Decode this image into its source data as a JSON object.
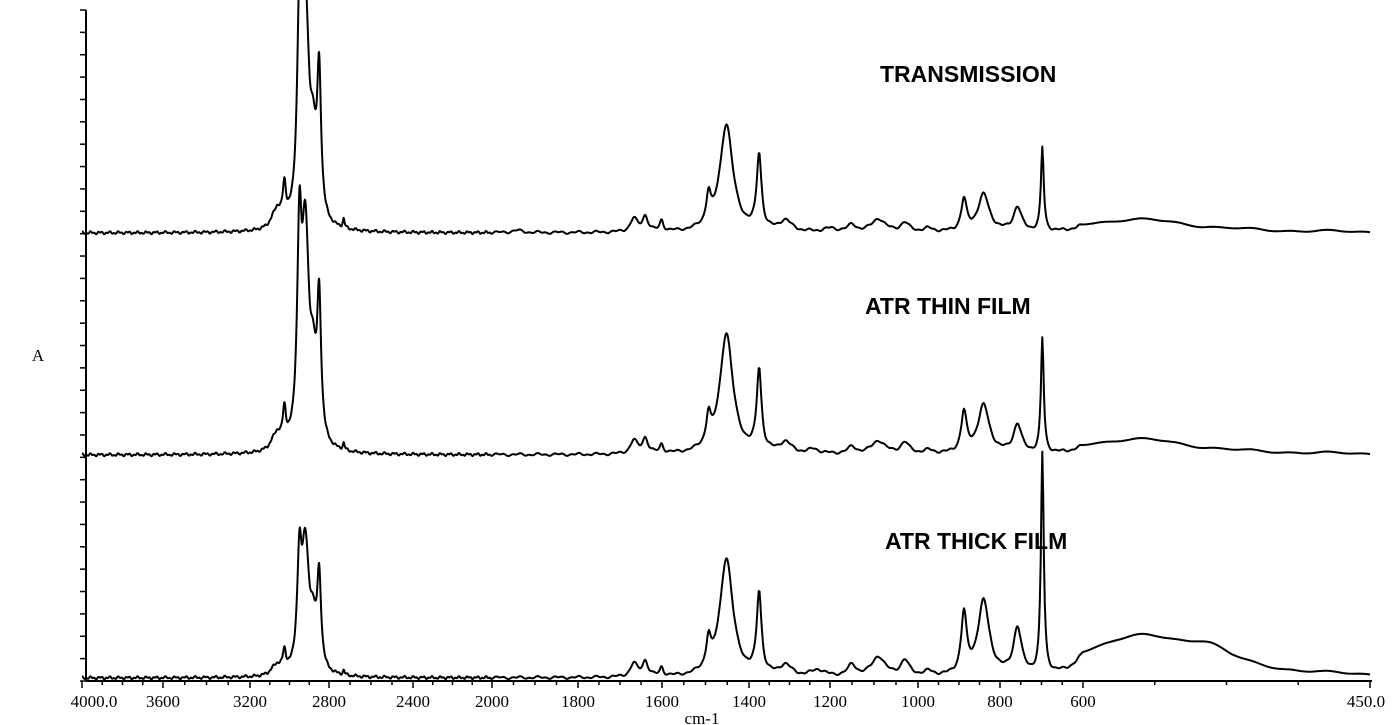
{
  "chart_data": {
    "type": "line",
    "title": "",
    "xlabel": "cm-1",
    "ylabel": "A",
    "x_reversed": true,
    "xlim": [
      4000.0,
      450.0
    ],
    "x_ticks": [
      "4000.0",
      "3600",
      "3200",
      "2800",
      "2400",
      "2000",
      "1800",
      "1600",
      "1400",
      "1200",
      "1000",
      "800",
      "600",
      "450.0"
    ],
    "x_tick_values": [
      4000,
      3600,
      3200,
      2800,
      2400,
      2000,
      1800,
      1600,
      1400,
      1200,
      1000,
      800,
      600,
      450
    ],
    "y_axis_numbered": false,
    "grid": false,
    "series": [
      {
        "name": "TRANSMISSION",
        "baseline": 0.02,
        "peaks": [
          {
            "x": 3080,
            "y": 0.03,
            "w": 25
          },
          {
            "x": 3060,
            "y": 0.06,
            "w": 20
          },
          {
            "x": 3026,
            "y": 0.16,
            "w": 10
          },
          {
            "x": 2950,
            "y": 0.84,
            "w": 13
          },
          {
            "x": 2920,
            "y": 0.97,
            "w": 22
          },
          {
            "x": 2880,
            "y": 0.28,
            "w": 18
          },
          {
            "x": 2850,
            "y": 0.64,
            "w": 12
          },
          {
            "x": 2730,
            "y": 0.04,
            "w": 5
          },
          {
            "x": 1942,
            "y": 0.01,
            "w": 15
          },
          {
            "x": 1667,
            "y": 0.06,
            "w": 10
          },
          {
            "x": 1640,
            "y": 0.07,
            "w": 8
          },
          {
            "x": 1601,
            "y": 0.05,
            "w": 5
          },
          {
            "x": 1493,
            "y": 0.13,
            "w": 6
          },
          {
            "x": 1452,
            "y": 0.49,
            "w": 18
          },
          {
            "x": 1375,
            "y": 0.34,
            "w": 7
          },
          {
            "x": 1310,
            "y": 0.05,
            "w": 18
          },
          {
            "x": 1200,
            "y": 0.015,
            "w": 20
          },
          {
            "x": 1150,
            "y": 0.03,
            "w": 12
          },
          {
            "x": 1090,
            "y": 0.06,
            "w": 18
          },
          {
            "x": 1030,
            "y": 0.04,
            "w": 12
          },
          {
            "x": 975,
            "y": 0.015,
            "w": 15
          },
          {
            "x": 888,
            "y": 0.14,
            "w": 8
          },
          {
            "x": 840,
            "y": 0.17,
            "w": 17
          },
          {
            "x": 758,
            "y": 0.11,
            "w": 12
          },
          {
            "x": 698,
            "y": 0.38,
            "w": 4
          },
          {
            "x": 572,
            "y": 0.06,
            "w": 35
          }
        ]
      },
      {
        "name": "ATR  THIN FILM",
        "baseline": 0.02,
        "peaks": [
          {
            "x": 3080,
            "y": 0.03,
            "w": 25
          },
          {
            "x": 3060,
            "y": 0.05,
            "w": 20
          },
          {
            "x": 3026,
            "y": 0.15,
            "w": 10
          },
          {
            "x": 2950,
            "y": 0.84,
            "w": 13
          },
          {
            "x": 2920,
            "y": 0.96,
            "w": 22
          },
          {
            "x": 2880,
            "y": 0.28,
            "w": 18
          },
          {
            "x": 2850,
            "y": 0.62,
            "w": 12
          },
          {
            "x": 2730,
            "y": 0.03,
            "w": 5
          },
          {
            "x": 1667,
            "y": 0.06,
            "w": 10
          },
          {
            "x": 1640,
            "y": 0.07,
            "w": 8
          },
          {
            "x": 1601,
            "y": 0.04,
            "w": 5
          },
          {
            "x": 1493,
            "y": 0.13,
            "w": 6
          },
          {
            "x": 1452,
            "y": 0.55,
            "w": 18
          },
          {
            "x": 1375,
            "y": 0.37,
            "w": 7
          },
          {
            "x": 1310,
            "y": 0.05,
            "w": 18
          },
          {
            "x": 1240,
            "y": 0.02,
            "w": 15
          },
          {
            "x": 1150,
            "y": 0.03,
            "w": 12
          },
          {
            "x": 1090,
            "y": 0.06,
            "w": 18
          },
          {
            "x": 1030,
            "y": 0.05,
            "w": 12
          },
          {
            "x": 975,
            "y": 0.015,
            "w": 15
          },
          {
            "x": 888,
            "y": 0.18,
            "w": 8
          },
          {
            "x": 840,
            "y": 0.22,
            "w": 17
          },
          {
            "x": 758,
            "y": 0.13,
            "w": 12
          },
          {
            "x": 698,
            "y": 0.52,
            "w": 4
          },
          {
            "x": 572,
            "y": 0.07,
            "w": 35
          }
        ]
      },
      {
        "name": "ATR THICK FILM",
        "baseline": 0.02,
        "peaks": [
          {
            "x": 3080,
            "y": 0.02,
            "w": 25
          },
          {
            "x": 3060,
            "y": 0.03,
            "w": 20
          },
          {
            "x": 3026,
            "y": 0.09,
            "w": 10
          },
          {
            "x": 2950,
            "y": 0.45,
            "w": 13
          },
          {
            "x": 2920,
            "y": 0.57,
            "w": 22
          },
          {
            "x": 2880,
            "y": 0.18,
            "w": 18
          },
          {
            "x": 2850,
            "y": 0.41,
            "w": 12
          },
          {
            "x": 2730,
            "y": 0.02,
            "w": 5
          },
          {
            "x": 1667,
            "y": 0.06,
            "w": 10
          },
          {
            "x": 1640,
            "y": 0.07,
            "w": 8
          },
          {
            "x": 1601,
            "y": 0.04,
            "w": 5
          },
          {
            "x": 1493,
            "y": 0.13,
            "w": 6
          },
          {
            "x": 1452,
            "y": 0.54,
            "w": 18
          },
          {
            "x": 1375,
            "y": 0.37,
            "w": 7
          },
          {
            "x": 1310,
            "y": 0.05,
            "w": 18
          },
          {
            "x": 1230,
            "y": 0.03,
            "w": 20
          },
          {
            "x": 1150,
            "y": 0.05,
            "w": 12
          },
          {
            "x": 1090,
            "y": 0.09,
            "w": 18
          },
          {
            "x": 1030,
            "y": 0.07,
            "w": 12
          },
          {
            "x": 975,
            "y": 0.02,
            "w": 15
          },
          {
            "x": 888,
            "y": 0.27,
            "w": 8
          },
          {
            "x": 840,
            "y": 0.34,
            "w": 17
          },
          {
            "x": 758,
            "y": 0.21,
            "w": 12
          },
          {
            "x": 698,
            "y": 1.0,
            "w": 4
          },
          {
            "x": 572,
            "y": 0.18,
            "w": 35
          },
          {
            "x": 535,
            "y": 0.08,
            "w": 15
          }
        ]
      }
    ]
  }
}
